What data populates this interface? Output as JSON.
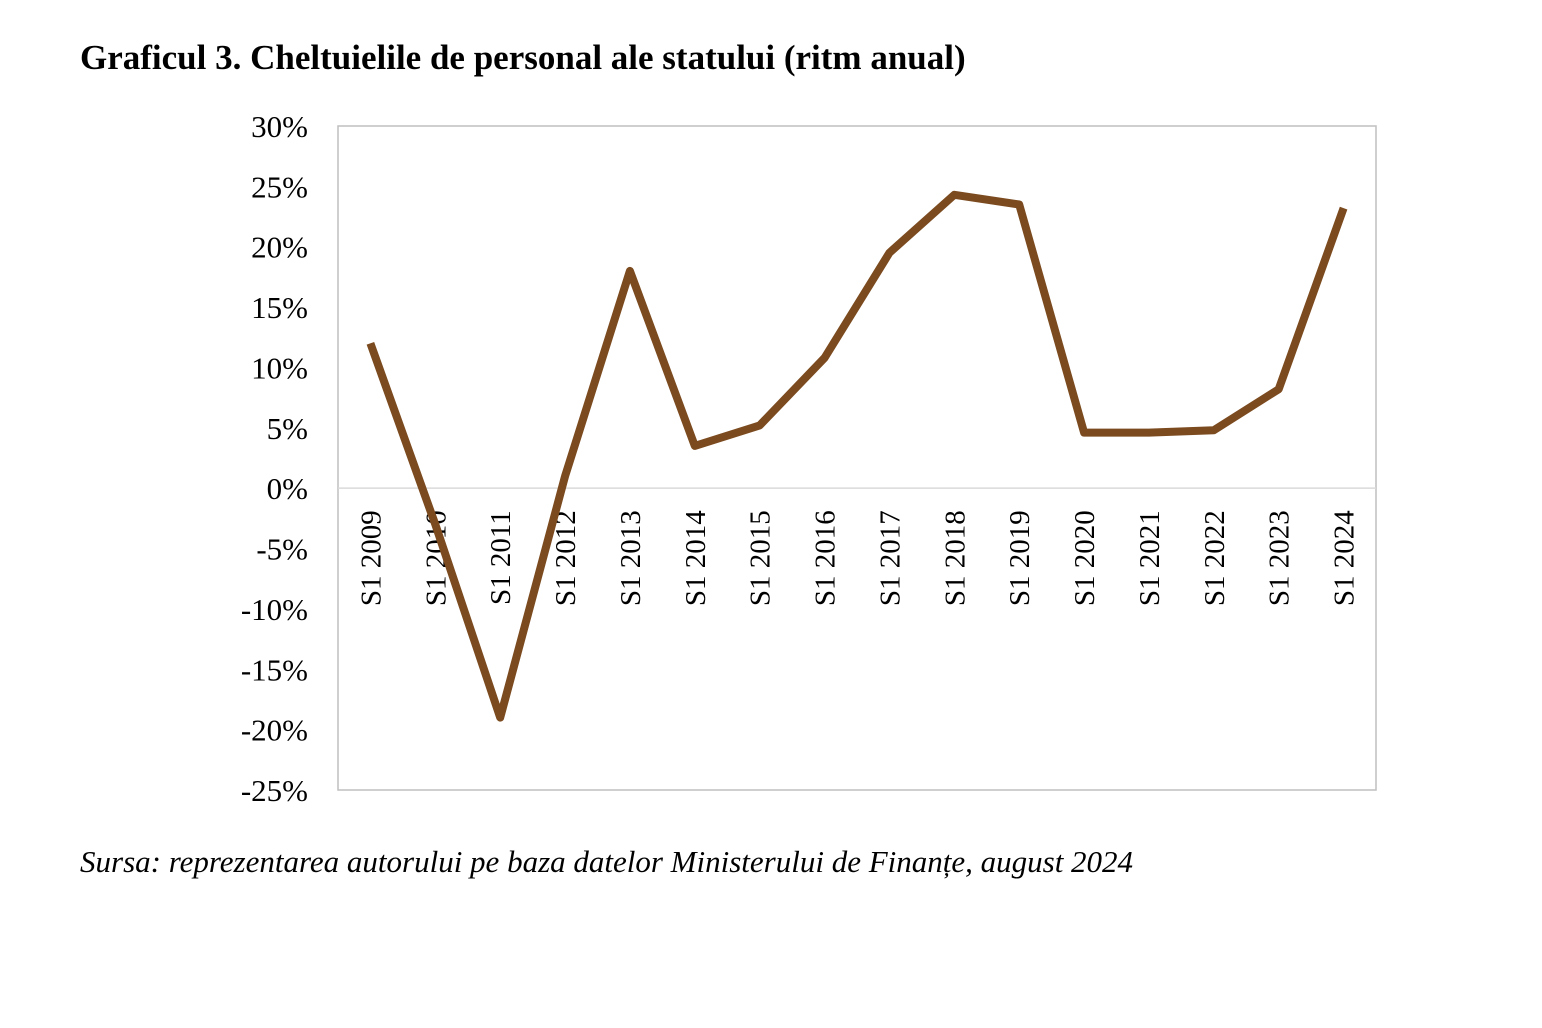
{
  "chart_title": "Graficul 3. Cheltuielile de personal ale statului (ritm anual)",
  "source": "Sursa: reprezentarea autorului pe baza datelor Ministerului de Finanțe, august 2024",
  "chart_data": {
    "type": "line",
    "title": "Graficul 3. Cheltuielile de personal ale statului (ritm anual)",
    "xlabel": "",
    "ylabel": "",
    "categories": [
      "S1 2009",
      "S1 2010",
      "S1 2011",
      "S1 2012",
      "S1 2013",
      "S1 2014",
      "S1 2015",
      "S1 2016",
      "S1 2017",
      "S1 2018",
      "S1 2019",
      "S1 2020",
      "S1 2021",
      "S1 2022",
      "S1 2023",
      "S1 2024"
    ],
    "series": [
      {
        "name": "",
        "values": [
          12.0,
          -3.0,
          -19.0,
          1.0,
          18.0,
          3.5,
          5.2,
          10.8,
          19.5,
          24.3,
          23.5,
          4.6,
          4.6,
          4.8,
          8.2,
          23.2
        ]
      }
    ],
    "ylim": [
      -25,
      30
    ],
    "yticks": [
      30,
      25,
      20,
      15,
      10,
      5,
      0,
      -5,
      -10,
      -15,
      -20,
      -25
    ],
    "ytick_labels": [
      "30%",
      "25%",
      "20%",
      "15%",
      "10%",
      "5%",
      "0%",
      "-5%",
      "-10%",
      "-15%",
      "-20%",
      "-25%"
    ],
    "grid": false,
    "legend": "none",
    "colors": {
      "line": "#7B4A1E",
      "frame": "#BFBFBF",
      "zero_line": "#D9D9D9"
    }
  }
}
